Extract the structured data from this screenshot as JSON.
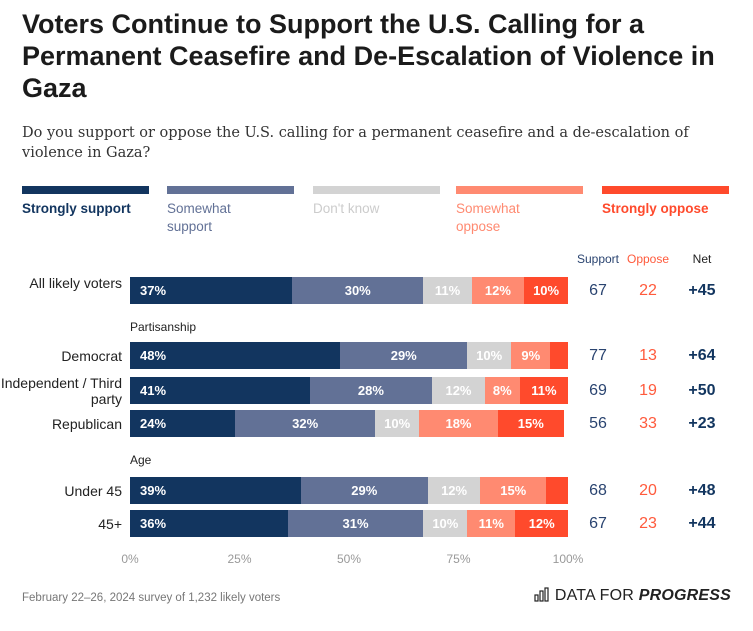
{
  "title": "Voters Continue to Support the U.S. Calling for a Permanent Ceasefire and De-Escalation of Violence in Gaza",
  "subtitle": "Do you support or oppose the U.S. calling for a permanent ceasefire and a de-escalation of violence in Gaza?",
  "footer": "February 22–26, 2024 survey of 1,232 likely voters",
  "logo": {
    "text_regular": "DATA FOR",
    "text_bold": "PROGRESS",
    "icon": "bar-chart-icon"
  },
  "chart_data": {
    "type": "bar",
    "orientation": "horizontal",
    "stacked": true,
    "xlim": [
      0,
      100
    ],
    "ticks": [
      "0%",
      "25%",
      "50%",
      "75%",
      "100%"
    ],
    "legend": [
      "Strongly support",
      "Somewhat support",
      "Don't know",
      "Somewhat oppose",
      "Strongly oppose"
    ],
    "legend_placement": "top",
    "colors": [
      "#12355f",
      "#627196",
      "#d3d3d3",
      "#ff8a71",
      "#ff4a2c"
    ],
    "columns": {
      "support": "Support",
      "oppose": "Oppose",
      "net": "Net"
    },
    "column_colors": {
      "support": "#2a4470",
      "oppose": "#ff5a3c",
      "net": "#12355f"
    },
    "groups": [
      "Partisanship",
      "Age"
    ],
    "rows": [
      {
        "label": "All likely voters",
        "values": [
          37,
          30,
          11,
          12,
          10
        ],
        "support": "67",
        "oppose": "22",
        "net": "+45"
      },
      {
        "label": "Democrat",
        "group": "Partisanship",
        "values": [
          48,
          29,
          10,
          9,
          4
        ],
        "support": "77",
        "oppose": "13",
        "net": "+64"
      },
      {
        "label": "Independent / Third party",
        "group": "Partisanship",
        "values": [
          41,
          28,
          12,
          8,
          11
        ],
        "support": "69",
        "oppose": "19",
        "net": "+50"
      },
      {
        "label": "Republican",
        "group": "Partisanship",
        "values": [
          24,
          32,
          10,
          18,
          15
        ],
        "support": "56",
        "oppose": "33",
        "net": "+23"
      },
      {
        "label": "Under 45",
        "group": "Age",
        "values": [
          39,
          29,
          12,
          15,
          5
        ],
        "support": "68",
        "oppose": "20",
        "net": "+48"
      },
      {
        "label": "45+",
        "group": "Age",
        "values": [
          36,
          31,
          10,
          11,
          12
        ],
        "support": "67",
        "oppose": "23",
        "net": "+44"
      }
    ]
  }
}
